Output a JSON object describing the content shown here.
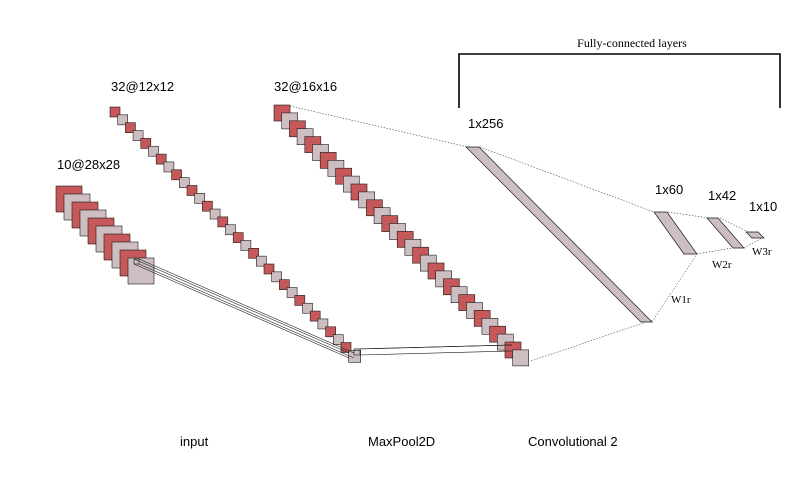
{
  "colors": {
    "red": "#c6585a",
    "gray": "#cdbfc1",
    "stroke": "#1a1a1a",
    "background": "#ffffff"
  },
  "layers": {
    "input": {
      "shape": "10@28x28",
      "caption": "input"
    },
    "conv1": {
      "shape": "32@12x12"
    },
    "pool": {
      "shape": "32@16x16",
      "caption": "MaxPool2D"
    },
    "conv2": {
      "caption": "Convolutional 2"
    }
  },
  "fc": {
    "title": "Fully-connected layers",
    "layer1": "1x256",
    "layer2": "1x60",
    "layer3": "1x42",
    "layer4": "1x10",
    "w1": "W1r",
    "w2": "W2r",
    "w3": "W3r"
  }
}
